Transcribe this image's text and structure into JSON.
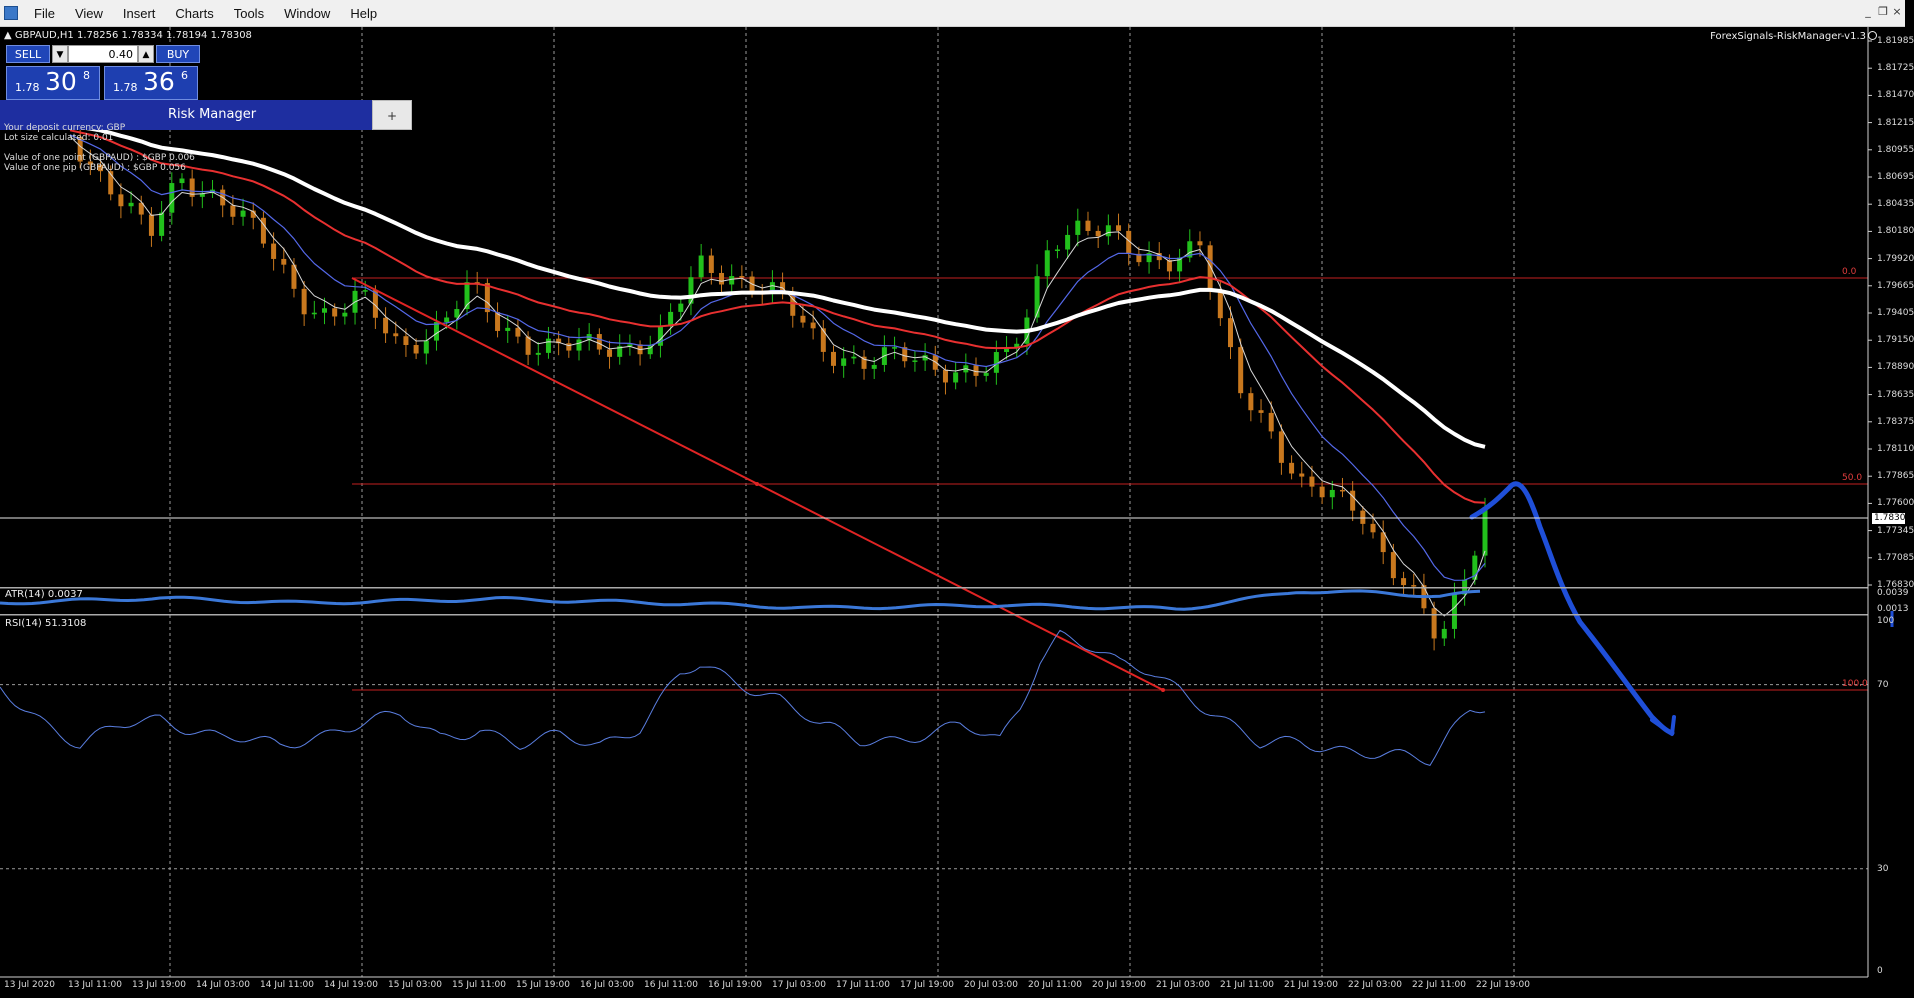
{
  "menu": {
    "items": [
      "File",
      "View",
      "Insert",
      "Charts",
      "Tools",
      "Window",
      "Help"
    ]
  },
  "chart": {
    "symbol_info": "GBPAUD,H1  1.78256 1.78334 1.78194 1.78308",
    "ea_label": "ForexSignals-RiskManager-v1.3",
    "current_price": "1.78308"
  },
  "trade_panel": {
    "sell_label": "SELL",
    "buy_label": "BUY",
    "lot_value": "0.40",
    "sell_price": {
      "big": "1.78",
      "mid": "30",
      "sup": "8"
    },
    "buy_price": {
      "big": "1.78",
      "mid": "36",
      "sup": "6"
    }
  },
  "risk_manager": {
    "title": "Risk Manager",
    "toggle_label": "+",
    "lines": [
      "Your deposit currency: GBP",
      "Lot size calculated: 0.01",
      "",
      "Value of one point (GBPAUD) : $GBP 0.006",
      "Value of one pip  (GBPAUD) : $GBP 0.056"
    ]
  },
  "price_axis": [
    "1.81985",
    "1.81725",
    "1.81470",
    "1.81215",
    "1.80955",
    "1.80695",
    "1.80435",
    "1.80180",
    "1.79920",
    "1.79665",
    "1.79405",
    "1.79150",
    "1.78890",
    "1.78635",
    "1.78375",
    "1.78110",
    "1.77865",
    "1.77600",
    "1.77345",
    "1.77085",
    "1.76830"
  ],
  "fib_labels": [
    "0.0",
    "50.0",
    "100.0"
  ],
  "atr": {
    "label": "ATR(14) 0.0037",
    "axis": [
      "0.0039",
      "0.0013"
    ]
  },
  "rsi": {
    "label": "RSI(14) 51.3108",
    "axis": [
      "100",
      "70",
      "30",
      "0"
    ]
  },
  "time_axis": [
    "13 Jul 2020",
    "13 Jul 11:00",
    "13 Jul 19:00",
    "14 Jul 03:00",
    "14 Jul 11:00",
    "14 Jul 19:00",
    "15 Jul 03:00",
    "15 Jul 11:00",
    "15 Jul 19:00",
    "16 Jul 03:00",
    "16 Jul 11:00",
    "16 Jul 19:00",
    "17 Jul 03:00",
    "17 Jul 11:00",
    "17 Jul 19:00",
    "20 Jul 03:00",
    "20 Jul 11:00",
    "20 Jul 19:00",
    "21 Jul 03:00",
    "21 Jul 11:00",
    "21 Jul 19:00",
    "22 Jul 03:00",
    "22 Jul 11:00",
    "22 Jul 19:00"
  ],
  "colors": {
    "background": "#000000",
    "bull_candle": "#22c01c",
    "bear_candle": "#c8781e",
    "ma_fast": "#d8d8d8",
    "ma_mid": "#5468e8",
    "ma_slow": "#e83030",
    "ma_long": "#ffffff",
    "fib": "#c22020",
    "drawing": "#1f4fd8",
    "indicator": "#3b78d8"
  }
}
